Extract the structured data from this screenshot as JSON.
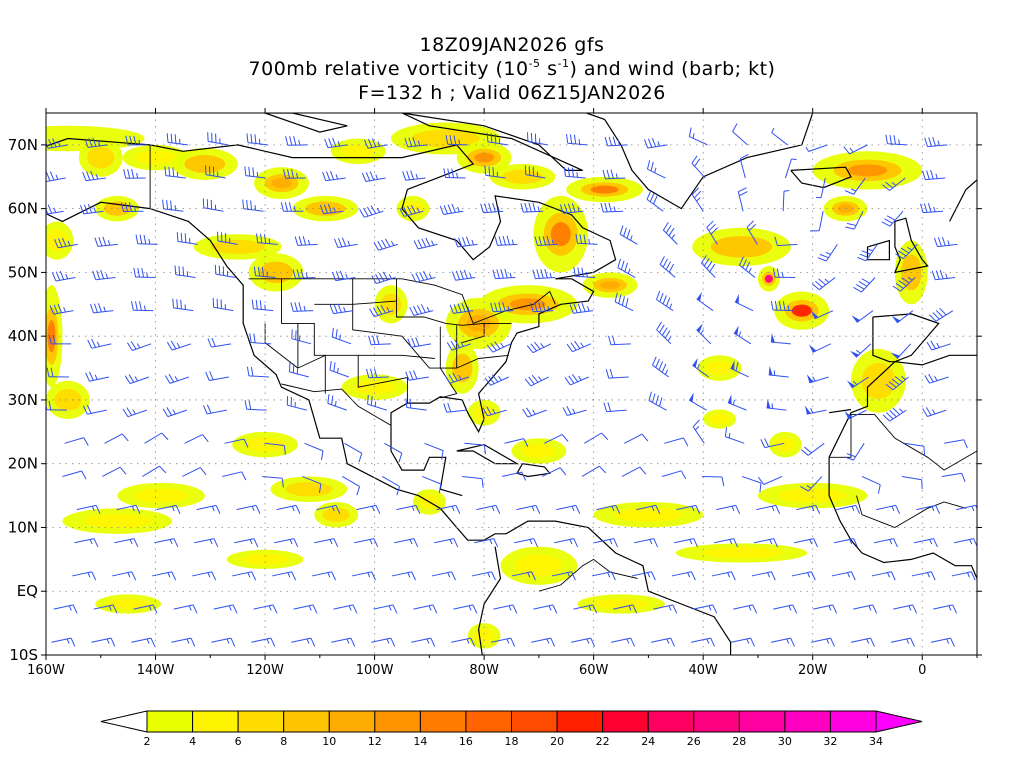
{
  "title": {
    "line1": "18Z09JAN2026 gfs",
    "line2_pre": "700mb relative vorticity (10",
    "line2_exp1": "-5",
    "line2_mid": " s",
    "line2_exp2": "-1",
    "line2_post": ") and wind (barb; kt)",
    "line3": "F=132 h ; Valid 06Z15JAN2026"
  },
  "map": {
    "lon_min": -160,
    "lon_max": 10,
    "lat_min": -10,
    "lat_max": 75,
    "x_ticks": [
      {
        "lon": -160,
        "label": "160W"
      },
      {
        "lon": -140,
        "label": "140W"
      },
      {
        "lon": -120,
        "label": "120W"
      },
      {
        "lon": -100,
        "label": "100W"
      },
      {
        "lon": -80,
        "label": "80W"
      },
      {
        "lon": -60,
        "label": "60W"
      },
      {
        "lon": -40,
        "label": "40W"
      },
      {
        "lon": -20,
        "label": "20W"
      },
      {
        "lon": 0,
        "label": "0"
      }
    ],
    "y_ticks": [
      {
        "lat": 70,
        "label": "70N"
      },
      {
        "lat": 60,
        "label": "60N"
      },
      {
        "lat": 50,
        "label": "50N"
      },
      {
        "lat": 40,
        "label": "40N"
      },
      {
        "lat": 30,
        "label": "30N"
      },
      {
        "lat": 20,
        "label": "20N"
      },
      {
        "lat": 10,
        "label": "10N"
      },
      {
        "lat": 0,
        "label": "EQ"
      },
      {
        "lat": -10,
        "label": "10S"
      }
    ],
    "grid": "dotted"
  },
  "colorbar": {
    "labels": [
      "2",
      "4",
      "6",
      "8",
      "10",
      "12",
      "14",
      "16",
      "18",
      "20",
      "22",
      "24",
      "26",
      "28",
      "30",
      "32",
      "34"
    ],
    "colors": [
      "#e8ff00",
      "#fff400",
      "#ffdc00",
      "#ffc400",
      "#ffac00",
      "#ff9400",
      "#ff7c00",
      "#ff6400",
      "#ff4c00",
      "#ff2000",
      "#ff0030",
      "#ff0060",
      "#ff0080",
      "#ff00a0",
      "#ff00c0",
      "#ff00e0"
    ],
    "under_color": "#ffffff",
    "over_color": "#ff00ff"
  },
  "colors": {
    "barb": "#3050f0",
    "coast": "#000000",
    "grid": "#888888"
  }
}
